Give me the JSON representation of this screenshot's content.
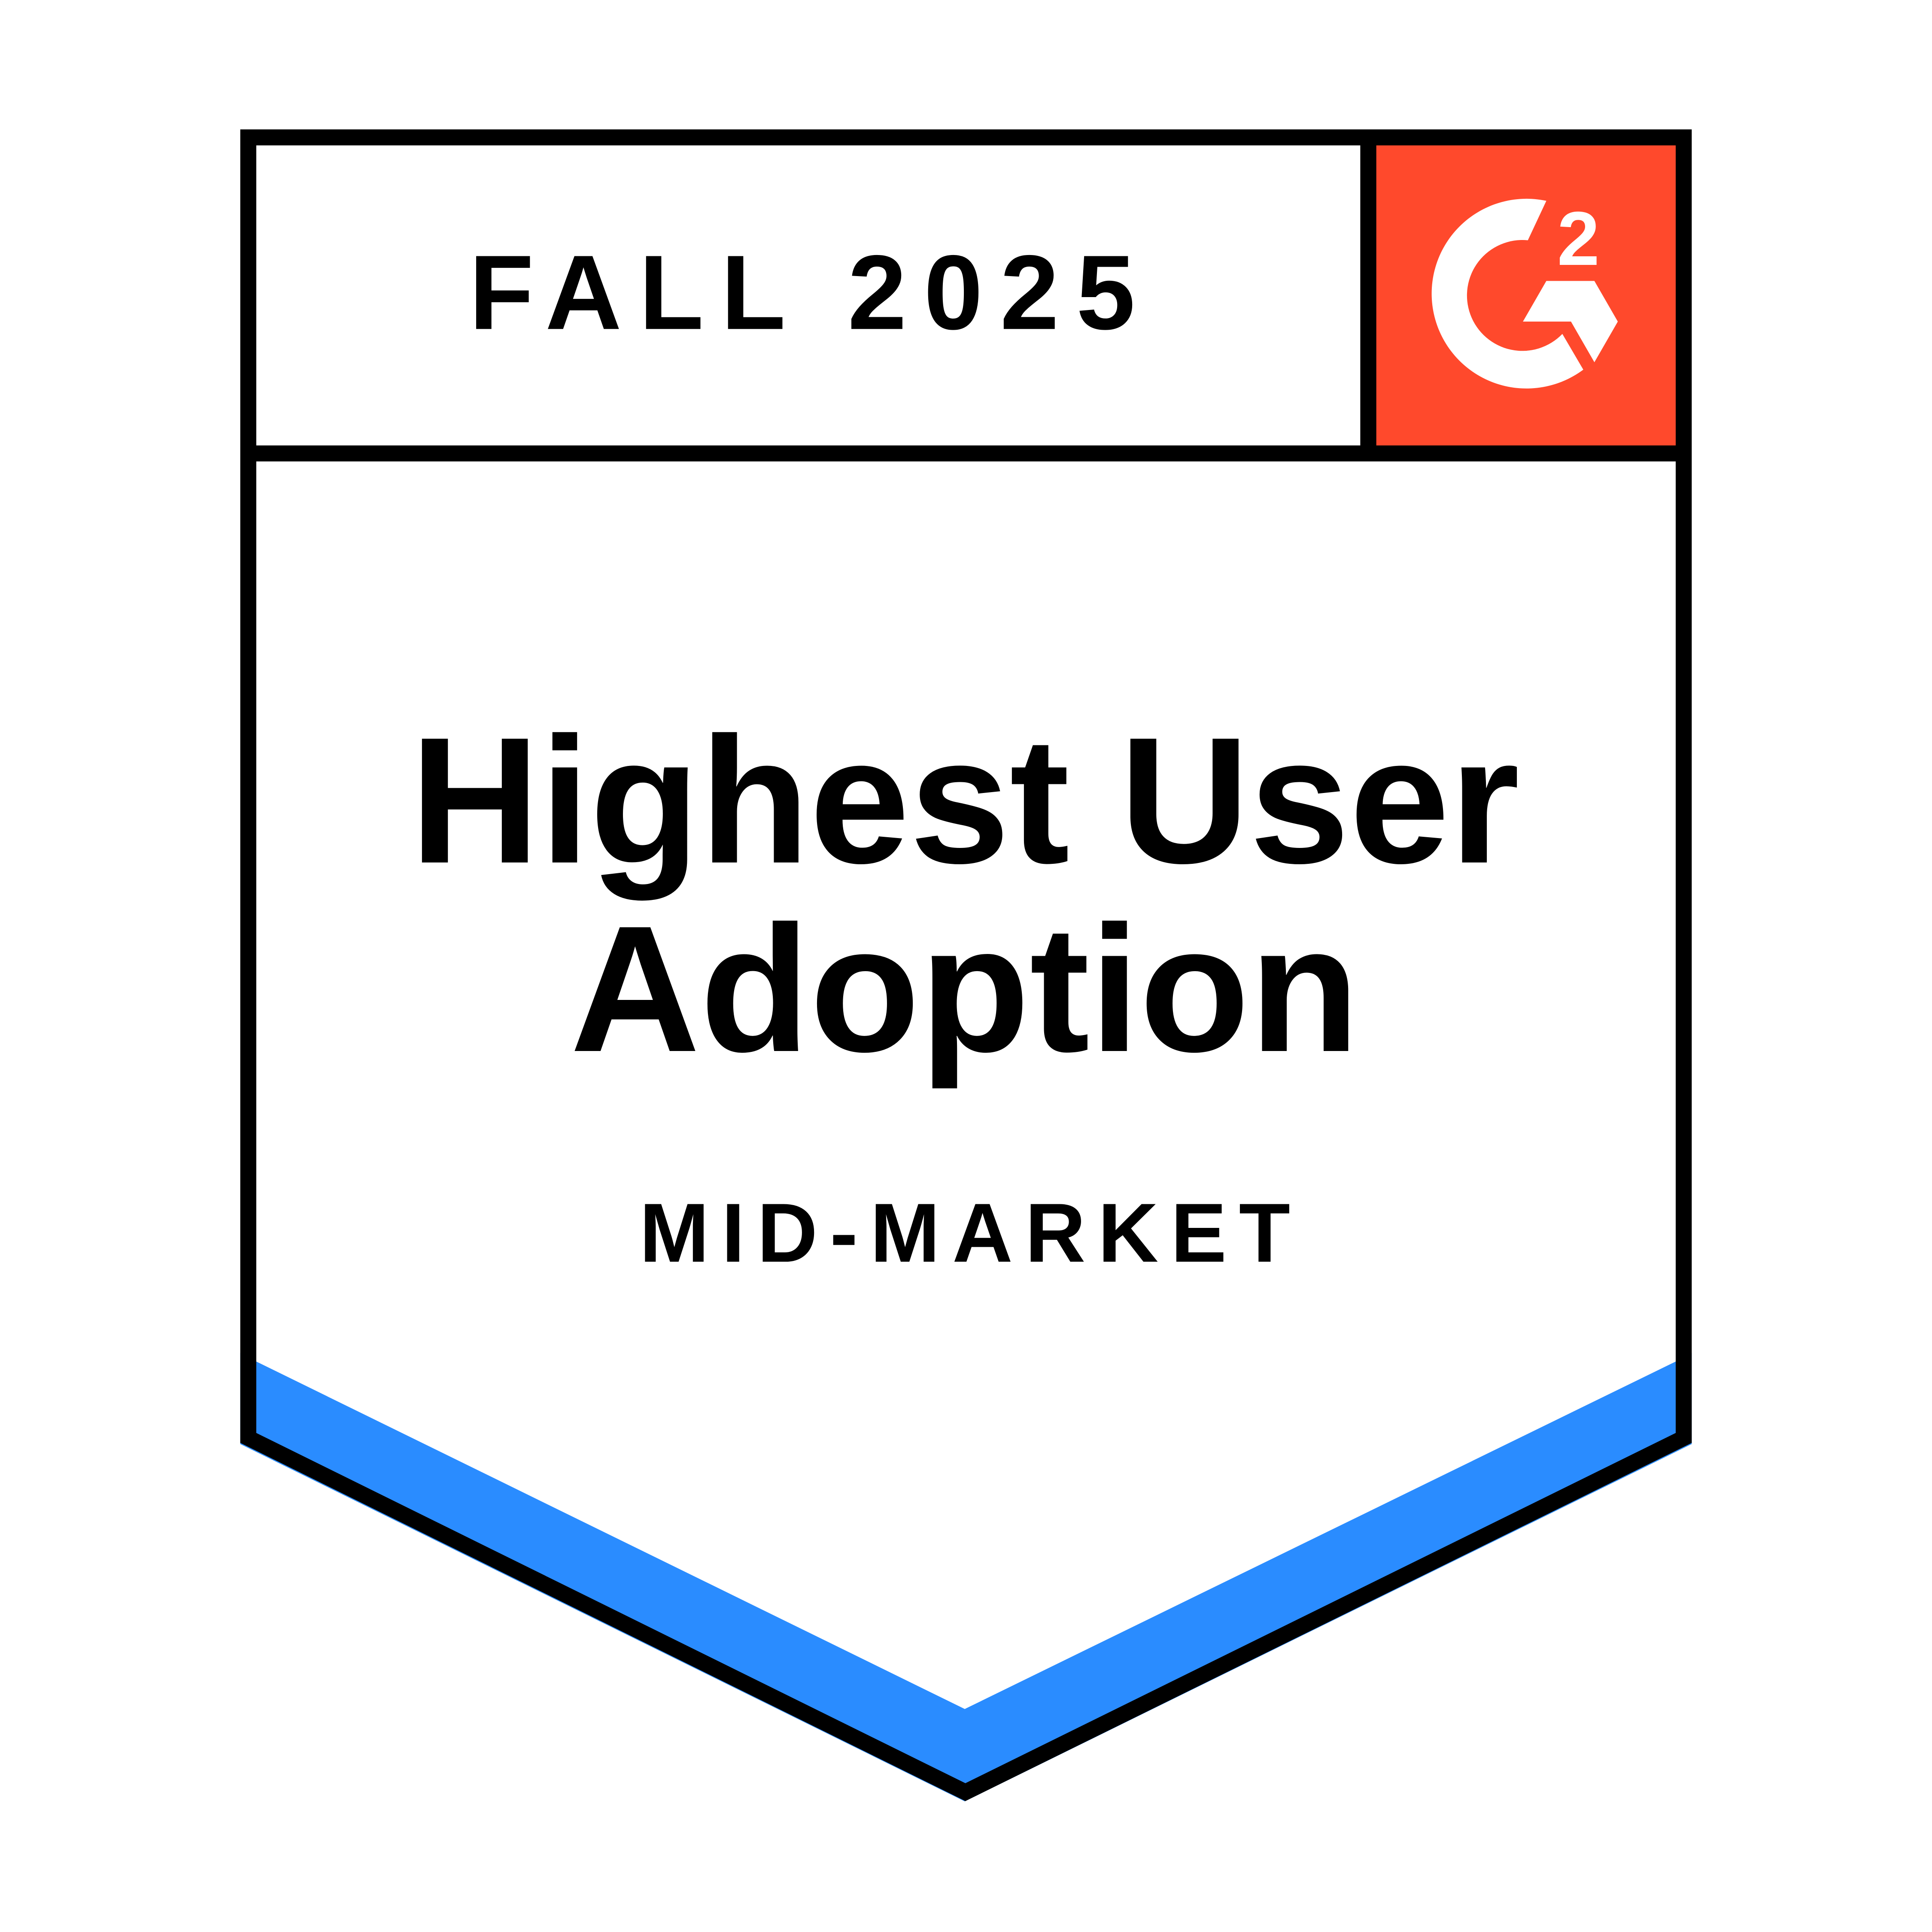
{
  "badge": {
    "season": "FALL 2025",
    "title_line1": "Highest User",
    "title_line2": "Adoption",
    "segment": "MID-MARKET",
    "logo": {
      "text": "G2",
      "superscript": "2",
      "icon": "g2-logo-icon"
    }
  },
  "colors": {
    "logo_background": "#FF492C",
    "accent_band": "#2A8CFF",
    "border": "#000000",
    "background": "#FFFFFF"
  }
}
